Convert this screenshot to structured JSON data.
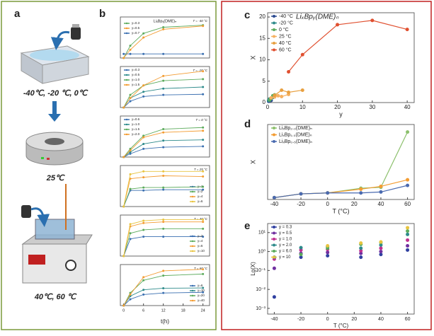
{
  "panel_labels": [
    "a",
    "b",
    "c",
    "d",
    "e"
  ],
  "panel_a": {
    "captions": [
      "-40℃, -20 ℃, 0℃",
      "25℃",
      "40℃, 60 ℃"
    ]
  },
  "panel_b_xlabel": "t(h)",
  "chart_data": [
    {
      "type": "line",
      "subtitle": "LiₓBpᵧ(DME)ₙ",
      "title": "T = -40 °C",
      "x": [
        0,
        2,
        6,
        12,
        24
      ],
      "xlim": [
        -1,
        26
      ],
      "ylim": [
        0,
        1
      ],
      "legend": "upper left",
      "series": [
        {
          "name": "y=0.3",
          "color": "#5cab5c",
          "values": [
            0,
            0.3,
            0.6,
            0.75,
            0.8
          ]
        },
        {
          "name": "y=0.5",
          "color": "#f39c32",
          "values": [
            0,
            0.2,
            0.5,
            0.7,
            0.78
          ]
        },
        {
          "name": "y=0.7",
          "color": "#3a6fb0",
          "values": [
            0.1,
            0.1,
            0.1,
            0.1,
            0.1
          ]
        }
      ]
    },
    {
      "type": "line",
      "title": "T = -20 °C",
      "x": [
        0,
        2,
        6,
        12,
        24
      ],
      "xlim": [
        -1,
        26
      ],
      "ylim": [
        0,
        1.3
      ],
      "legend": "upper left",
      "series": [
        {
          "name": "y=0.3",
          "color": "#3a6fb0",
          "values": [
            0,
            0.2,
            0.35,
            0.4,
            0.42
          ]
        },
        {
          "name": "y=0.5",
          "color": "#2e8b8b",
          "values": [
            0,
            0.3,
            0.5,
            0.6,
            0.65
          ]
        },
        {
          "name": "y=1.0",
          "color": "#5cab5c",
          "values": [
            0,
            0.4,
            0.7,
            0.85,
            0.9
          ]
        },
        {
          "name": "y=1.5",
          "color": "#f39c32",
          "values": [
            0,
            0.3,
            0.7,
            1.0,
            1.15
          ]
        }
      ]
    },
    {
      "type": "line",
      "title": "T = 0 °C",
      "x": [
        0,
        2,
        6,
        12,
        24
      ],
      "xlim": [
        -1,
        26
      ],
      "ylim": [
        0,
        2.5
      ],
      "legend": "upper left",
      "series": [
        {
          "name": "y=0.6",
          "color": "#3a6fb0",
          "values": [
            0,
            0.2,
            0.5,
            0.6,
            0.65
          ]
        },
        {
          "name": "y=1.0",
          "color": "#2e8b8b",
          "values": [
            0,
            0.3,
            0.8,
            1.0,
            1.05
          ]
        },
        {
          "name": "y=1.5",
          "color": "#5cab5c",
          "values": [
            0,
            0.5,
            1.3,
            1.7,
            1.8
          ]
        },
        {
          "name": "y=2.0",
          "color": "#f39c32",
          "values": [
            0,
            0.4,
            1.2,
            1.5,
            1.6
          ]
        }
      ]
    },
    {
      "type": "line",
      "title": "T = 25 °C",
      "x": [
        0,
        2,
        6,
        12,
        24
      ],
      "xlim": [
        -1,
        26
      ],
      "ylim": [
        0,
        2.8
      ],
      "legend": "lower right",
      "series": [
        {
          "name": "y=1",
          "color": "#3a6fb0",
          "values": [
            0,
            1.1,
            1.1,
            1.15,
            1.15
          ]
        },
        {
          "name": "y=2",
          "color": "#5cab5c",
          "values": [
            0,
            1.2,
            1.3,
            1.3,
            1.35
          ]
        },
        {
          "name": "y=4",
          "color": "#f39c32",
          "values": [
            0,
            1.9,
            2.0,
            2.1,
            2.05
          ]
        },
        {
          "name": "y=6",
          "color": "#e8c440",
          "values": [
            0,
            2.2,
            2.4,
            2.4,
            2.4
          ]
        }
      ]
    },
    {
      "type": "line",
      "title": "T = 40 °C",
      "x": [
        0,
        2,
        6,
        12,
        24
      ],
      "xlim": [
        -1,
        26
      ],
      "ylim": [
        0,
        3.6
      ],
      "legend": "lower right",
      "series": [
        {
          "name": "y=2",
          "color": "#3a6fb0",
          "values": [
            0,
            1.5,
            1.7,
            1.7,
            1.7
          ]
        },
        {
          "name": "y=4",
          "color": "#5cab5c",
          "values": [
            0,
            2.0,
            2.3,
            2.4,
            2.4
          ]
        },
        {
          "name": "y=6",
          "color": "#f39c32",
          "values": [
            0,
            2.6,
            2.9,
            3.0,
            3.0
          ]
        },
        {
          "name": "y=10",
          "color": "#e8c440",
          "values": [
            0,
            2.8,
            3.1,
            3.2,
            3.2
          ]
        }
      ]
    },
    {
      "type": "line",
      "title": "T = 60 °C",
      "x": [
        0,
        2,
        6,
        12,
        24
      ],
      "xlim": [
        -1,
        26
      ],
      "ylim": [
        0,
        13
      ],
      "legend": "lower right",
      "xticks": [
        0,
        6,
        12,
        18,
        24
      ],
      "series": [
        {
          "name": "y=6",
          "color": "#3a6fb0",
          "values": [
            0,
            2,
            3.5,
            4,
            4.2
          ]
        },
        {
          "name": "y=10",
          "color": "#2e8b8b",
          "values": [
            0,
            3,
            5,
            5.5,
            5.6
          ]
        },
        {
          "name": "y=20",
          "color": "#5cab5c",
          "values": [
            0,
            4,
            8,
            9.5,
            10
          ]
        },
        {
          "name": "y=40",
          "color": "#f39c32",
          "values": [
            0,
            3.5,
            9,
            11,
            11.5
          ]
        }
      ]
    },
    {
      "type": "line",
      "title": "LiₓBpᵧ(DME)ₙ",
      "xlabel": "y",
      "ylabel": "X",
      "xlim": [
        0,
        42
      ],
      "ylim": [
        0,
        21
      ],
      "xticks": [
        0,
        10,
        20,
        30,
        40
      ],
      "yticks": [
        0,
        5,
        10,
        15,
        20
      ],
      "legend": "upper left",
      "series": [
        {
          "name": "-40 °C",
          "color": "#2a4a90",
          "x": [
            0.3,
            0.5,
            1
          ],
          "values": [
            0.3,
            0.4,
            0.5
          ]
        },
        {
          "name": "-20 °C",
          "color": "#2e8b8b",
          "x": [
            0.3,
            0.5,
            1,
            1.5
          ],
          "values": [
            0.5,
            0.8,
            1.0,
            1.2
          ]
        },
        {
          "name": "0 °C",
          "color": "#5cab5c",
          "x": [
            0.6,
            1,
            1.5,
            2
          ],
          "values": [
            0.6,
            1.0,
            1.6,
            1.8
          ]
        },
        {
          "name": "25 °C",
          "color": "#f5b060",
          "x": [
            1,
            2,
            3,
            4,
            6
          ],
          "values": [
            1.1,
            1.3,
            1.6,
            1.4,
            1.9
          ]
        },
        {
          "name": "40 °C",
          "color": "#e8a040",
          "x": [
            2,
            4,
            6,
            10
          ],
          "values": [
            1.7,
            2.9,
            2.4,
            2.9
          ]
        },
        {
          "name": "60 °C",
          "color": "#e05030",
          "x": [
            6,
            10,
            20,
            30,
            40
          ],
          "values": [
            7.2,
            11.2,
            18.2,
            19.2,
            17.1
          ]
        }
      ]
    },
    {
      "type": "line",
      "xlabel": "T (°C)",
      "ylabel": "X",
      "x": [
        -40,
        -20,
        0,
        25,
        40,
        60
      ],
      "xlim": [
        -45,
        65
      ],
      "ylim": [
        0,
        8
      ],
      "xticks": [
        -40,
        -20,
        0,
        20,
        40,
        60
      ],
      "legend": "upper left",
      "series": [
        {
          "name": "LiₓBp₂.₀(DME)ₙ",
          "color": "#8cc06c",
          "values": [
            0.2,
            0.6,
            0.7,
            1.2,
            1.3,
            7.2
          ]
        },
        {
          "name": "LiₓBp₁.₀(DME)ₙ",
          "color": "#f39c32",
          "values": [
            0.2,
            0.6,
            0.7,
            1.1,
            1.4,
            2.1
          ]
        },
        {
          "name": "LiₓBp₀.₅(DME)ₙ",
          "color": "#4a6ab0",
          "values": [
            0.2,
            0.6,
            0.7,
            0.7,
            0.8,
            1.5
          ]
        }
      ]
    },
    {
      "type": "scatter",
      "log_y": true,
      "xlabel": "T (°C)",
      "ylabel": "Lg(X)",
      "x": [
        -40,
        -20,
        0,
        25,
        40,
        60
      ],
      "xlim": [
        -45,
        65
      ],
      "ylim": [
        0.0005,
        30
      ],
      "xticks": [
        -40,
        -20,
        0,
        20,
        40,
        60
      ],
      "yticks": [
        {
          "value": 0.001,
          "label": "10⁻³"
        },
        {
          "value": 0.01,
          "label": "10⁻²"
        },
        {
          "value": 0.1,
          "label": "10⁻¹"
        },
        {
          "value": 1,
          "label": "10⁰"
        },
        {
          "value": 10,
          "label": "10¹"
        }
      ],
      "legend": "upper left",
      "series": [
        {
          "name": "y = 0.3",
          "color": "#3040a0",
          "values": [
            0.004,
            0.5,
            0.6,
            0.5,
            0.7,
            1.2
          ]
        },
        {
          "name": "y = 0.5",
          "color": "#7030a0",
          "values": [
            0.13,
            0.8,
            0.9,
            0.8,
            1.0,
            2.0
          ]
        },
        {
          "name": "y = 1.0",
          "color": "#c03090",
          "values": [
            0.4,
            1.2,
            1.3,
            1.1,
            1.5,
            4.0
          ]
        },
        {
          "name": "y = 2.0",
          "color": "#2e8b8b",
          "values": [
            0.5,
            1.6,
            1.8,
            1.5,
            2.2,
            8.0
          ]
        },
        {
          "name": "y = 6.0",
          "color": "#5cab5c",
          "values": [
            null,
            0.7,
            1.5,
            2.4,
            3.0,
            12.0
          ]
        },
        {
          "name": "y = 10",
          "color": "#e8c440",
          "values": [
            null,
            null,
            2.0,
            2.8,
            3.2,
            18.0
          ]
        }
      ]
    }
  ]
}
